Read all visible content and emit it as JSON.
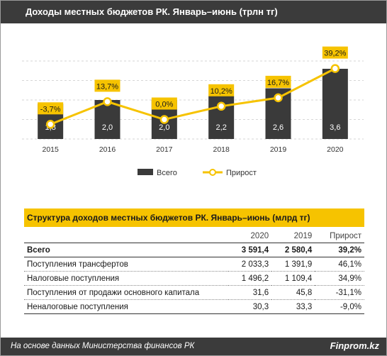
{
  "header": {
    "title": "Доходы местных бюджетов РК. Январь–июнь (трлн тг)"
  },
  "chart_data": {
    "type": "bar",
    "categories": [
      "2015",
      "2016",
      "2017",
      "2018",
      "2019",
      "2020"
    ],
    "series": [
      {
        "name": "Всего",
        "type": "bar",
        "values": [
          1.8,
          2.0,
          2.0,
          2.2,
          2.6,
          3.6
        ],
        "labels": [
          "1,8",
          "2,0",
          "2,0",
          "2,2",
          "2,6",
          "3,6"
        ]
      },
      {
        "name": "Прирост",
        "type": "line",
        "values": [
          -3.7,
          13.7,
          0.0,
          10.2,
          16.7,
          39.2
        ],
        "labels": [
          "-3,7%",
          "13,7%",
          "0,0%",
          "10,2%",
          "16,7%",
          "39,2%"
        ]
      }
    ],
    "ylim_bars": [
      0,
      4.0
    ],
    "ylim_line": [
      -15,
      45
    ],
    "legend_position": "bottom",
    "grid": true,
    "colors": {
      "bar": "#3a3a3a",
      "line": "#f6c300",
      "label_bg": "#f6c300"
    }
  },
  "table": {
    "title": "Структура доходов местных бюджетов РК. Январь–июнь (млрд тг)",
    "columns": [
      "",
      "2020",
      "2019",
      "Прирост"
    ],
    "rows": [
      [
        "Всего",
        "3 591,4",
        "2 580,4",
        "39,2%"
      ],
      [
        "Поступления трансфертов",
        "2 033,3",
        "1 391,9",
        "46,1%"
      ],
      [
        "Налоговые поступления",
        "1 496,2",
        "1 109,4",
        "34,9%"
      ],
      [
        "Поступления от продажи основного капитала",
        "31,6",
        "45,8",
        "-31,1%"
      ],
      [
        "Неналоговые поступления",
        "30,3",
        "33,3",
        "-9,0%"
      ]
    ]
  },
  "footer": {
    "source": "На основе данных  Министерства финансов  РК",
    "brand": "Finprom.kz"
  }
}
